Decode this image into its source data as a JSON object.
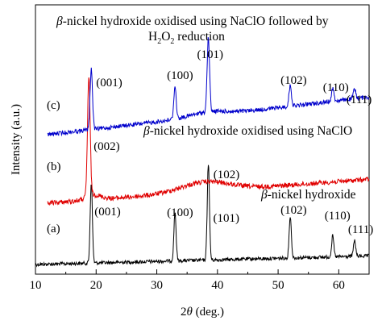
{
  "chart_data": {
    "type": "line",
    "xlabel": "2θ (deg.)",
    "ylabel": "Intensity (a.u.)",
    "xlim": [
      10,
      65
    ],
    "x_ticks": [
      10,
      20,
      30,
      40,
      50,
      60
    ],
    "grid": false,
    "series": [
      {
        "name": "(a) β-nickel hydroxide",
        "color": "#000000",
        "peaks": [
          {
            "x": 19.2,
            "label": "(001)"
          },
          {
            "x": 33.0,
            "label": "(100)"
          },
          {
            "x": 38.5,
            "label": "(101)"
          },
          {
            "x": 52.0,
            "label": "(102)"
          },
          {
            "x": 59.0,
            "label": "(110)"
          },
          {
            "x": 62.6,
            "label": "(111)"
          }
        ]
      },
      {
        "name": "(b) β-nickel hydroxide oxidised using NaClO",
        "color": "#e00000",
        "peaks": [
          {
            "x": 18.8,
            "label": "(002)"
          },
          {
            "x": 38.0,
            "label": "(102)"
          }
        ]
      },
      {
        "name": "(c) β-nickel hydroxide oxidised using NaClO followed by H2O2 reduction",
        "color": "#0000cc",
        "peaks": [
          {
            "x": 19.2,
            "label": "(001)"
          },
          {
            "x": 33.0,
            "label": "(100)"
          },
          {
            "x": 38.5,
            "label": "(101)"
          },
          {
            "x": 52.0,
            "label": "(102)"
          },
          {
            "x": 59.0,
            "label": "(110)"
          },
          {
            "x": 62.6,
            "label": "(111)"
          }
        ]
      }
    ],
    "curve_tags": [
      "(a)",
      "(b)",
      "(c)"
    ],
    "annotations": {
      "title_line1_prefix": "-nickel hydroxide oxidised using NaClO followed by",
      "title_line2": "H2O2 reduction",
      "b_label": "-nickel hydroxide oxidised using NaClO",
      "a_label": "-nickel hydroxide",
      "beta": "β"
    }
  }
}
